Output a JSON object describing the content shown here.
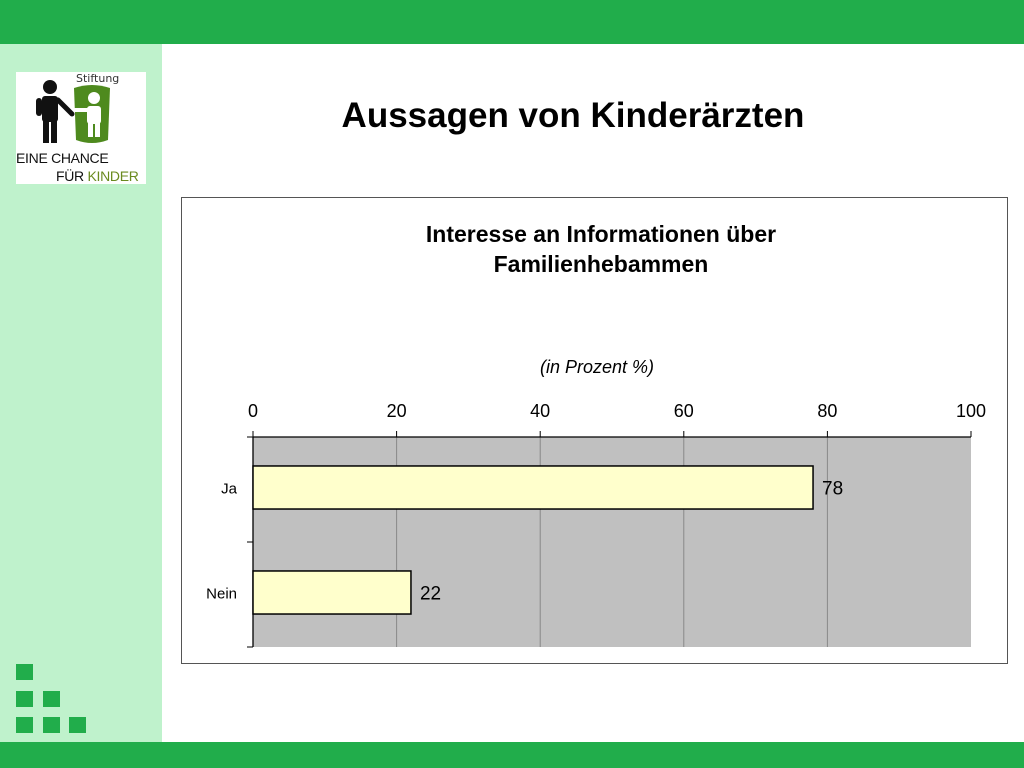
{
  "slide": {
    "title": "Aussagen von Kinderärzten",
    "colors": {
      "accent": "#21ad4b",
      "panel": "#bff2cc"
    }
  },
  "logo": {
    "stiftung": "Stiftung",
    "line1": "EINE CHANCE",
    "line2_a": "FÜR ",
    "line2_b": "KINDER"
  },
  "chart_data": {
    "type": "bar",
    "orientation": "horizontal",
    "title_line1": "Interesse an Informationen über",
    "title_line2": "Familienhebammen",
    "subtitle": "(in Prozent %)",
    "categories": [
      "Ja",
      "Nein"
    ],
    "values": [
      78,
      22
    ],
    "xlim": [
      0,
      100
    ],
    "xticks": [
      0,
      20,
      40,
      60,
      80,
      100
    ],
    "tick_position": "top",
    "grid": true,
    "plot_background": "#c0c0c0",
    "bar_color": "#ffffcc",
    "legend": "none"
  }
}
